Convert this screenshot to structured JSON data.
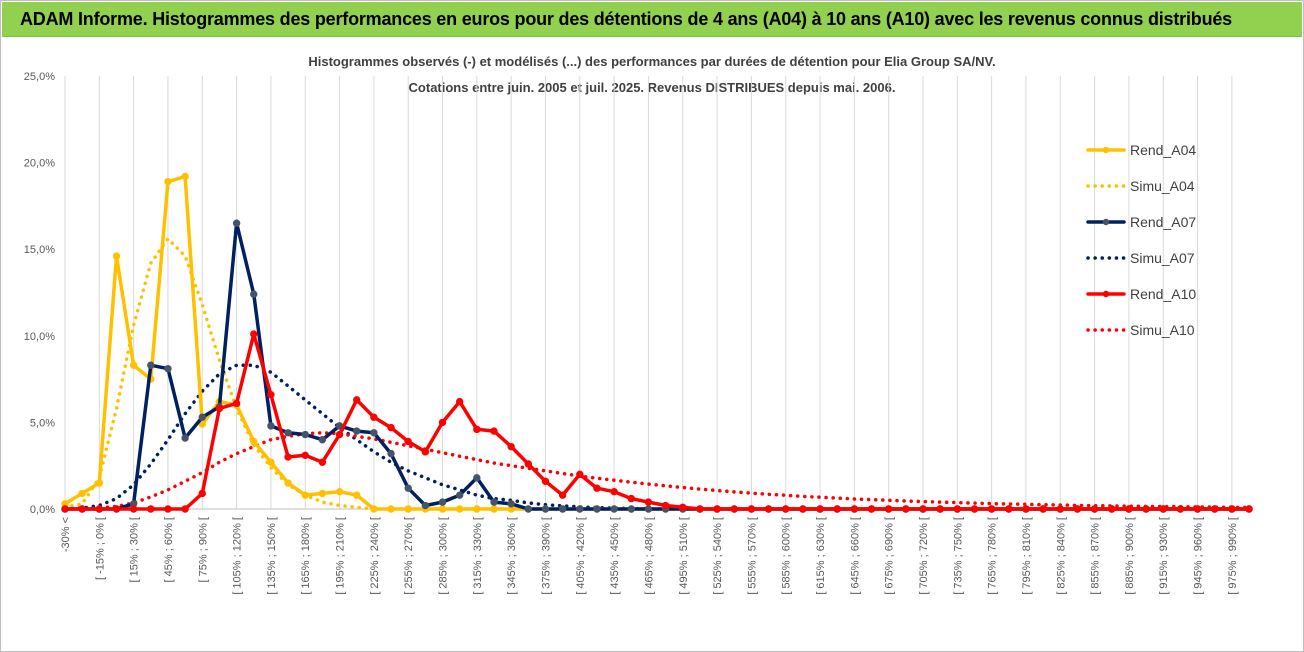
{
  "banner": {
    "title": "ADAM Informe. Histogrammes des performances en euros pour des détentions de 4 ans (A04) à 10 ans (A10) avec les revenus connus distribués"
  },
  "chart_data": {
    "type": "line",
    "title": "Histogrammes observés (-) et modélisés (...) des performances par durées de détention pour Elia Group SA/NV.",
    "subtitle": "Cotations entre juin. 2005 et juil. 2025. Revenus DISTRIBUES depuis mai. 2006.",
    "xlabel": "",
    "ylabel": "",
    "ylim": [
      0,
      25
    ],
    "yticks": [
      "0,0%",
      "5,0%",
      "10,0%",
      "15,0%",
      "20,0%",
      "25,0%"
    ],
    "grid": "vertical",
    "legend": "right",
    "categories": [
      "-30% <",
      "[ -30% ; -15% [",
      "[ -15% ; 0% [",
      "[ 0% ; 15% [",
      "[ 15% ; 30% [",
      "[ 30% ; 45% [",
      "[ 45% ; 60% [",
      "[ 60% ; 75% [",
      "[ 75% ; 90% [",
      "[ 90% ; 105% [",
      "[ 105% ; 120% [",
      "[ 120% ; 135% [",
      "[ 135% ; 150% [",
      "[ 150% ; 165% [",
      "[ 165% ; 180% [",
      "[ 180% ; 195% [",
      "[ 195% ; 210% [",
      "[ 210% ; 225% [",
      "[ 225% ; 240% [",
      "[ 240% ; 255% [",
      "[ 255% ; 270% [",
      "[ 270% ; 285% [",
      "[ 285% ; 300% [",
      "[ 300% ; 315% [",
      "[ 315% ; 330% [",
      "[ 330% ; 345% [",
      "[ 345% ; 360% [",
      "[ 360% ; 375% [",
      "[ 375% ; 390% [",
      "[ 390% ; 405% [",
      "[ 405% ; 420% [",
      "[ 420% ; 435% [",
      "[ 435% ; 450% [",
      "[ 450% ; 465% [",
      "[ 465% ; 480% [",
      "[ 480% ; 495% [",
      "[ 495% ; 510% [",
      "[ 510% ; 525% [",
      "[ 525% ; 540% [",
      "[ 540% ; 555% [",
      "[ 555% ; 570% [",
      "[ 570% ; 585% [",
      "[ 585% ; 600% [",
      "[ 600% ; 615% [",
      "[ 615% ; 630% [",
      "[ 630% ; 645% [",
      "[ 645% ; 660% [",
      "[ 660% ; 675% [",
      "[ 675% ; 690% [",
      "[ 690% ; 705% [",
      "[ 705% ; 720% [",
      "[ 720% ; 735% [",
      "[ 735% ; 750% [",
      "[ 750% ; 765% [",
      "[ 765% ; 780% [",
      "[ 780% ; 795% [",
      "[ 795% ; 810% [",
      "[ 810% ; 825% [",
      "[ 825% ; 840% [",
      "[ 840% ; 855% [",
      "[ 855% ; 870% [",
      "[ 870% ; 885% [",
      "[ 885% ; 900% [",
      "[ 900% ; 915% [",
      "[ 915% ; 930% [",
      "[ 930% ; 945% [",
      "[ 945% ; 960% [",
      "[ 960% ; 975% [",
      "[ 975% ; 990% [",
      "[ 990% ; 1005% ["
    ],
    "visible_tick_labels": [
      "-30% <",
      "[ -15% ; 0% [",
      "[ 15% ; 30% [",
      "[ 45% ; 60% [",
      "[ 75% ; 90% [",
      "[ 105% ; 120% [",
      "[ 135% ; 150% [",
      "[ 165% ; 180% [",
      "[ 195% ; 210% [",
      "[ 225% ; 240% [",
      "[ 255% ; 270% [",
      "[ 285% ; 300% [",
      "[ 315% ; 330% [",
      "[ 345% ; 360% [",
      "[ 375% ; 390% [",
      "[ 405% ; 420% [",
      "[ 435% ; 450% [",
      "[ 465% ; 480% [",
      "[ 495% ; 510% [",
      "[ 525% ; 540% [",
      "[ 555% ; 570% [",
      "[ 585% ; 600% [",
      "[ 615% ; 630% [",
      "[ 645% ; 660% [",
      "[ 675% ; 690% [",
      "[ 705% ; 720% [",
      "[ 735% ; 750% [",
      "[ 765% ; 780% [",
      "[ 795% ; 810% [",
      "[ 825% ; 840% [",
      "[ 855% ; 870% [",
      "[ 885% ; 900% [",
      "[ 915% ; 930% [",
      "[ 945% ; 960% [",
      "[ 975% ; 990% ["
    ],
    "series": [
      {
        "name": "Rend_A04",
        "color": "#ffc000",
        "style": "solid",
        "markers": true,
        "values": [
          0.3,
          0.9,
          1.5,
          14.6,
          8.3,
          7.5,
          18.9,
          19.2,
          4.9,
          6.2,
          6.0,
          3.9,
          2.7,
          1.5,
          0.8,
          0.9,
          1.0,
          0.8,
          0.0,
          0.0,
          0.0,
          0.0,
          0.0,
          0.0,
          0.0,
          0.0,
          0.0,
          0.0,
          0.0,
          0.0,
          0.0,
          0.0,
          0.0,
          0.0,
          0.0,
          0.0,
          0.0,
          0.0,
          0.0,
          0.0,
          0.0,
          0.0,
          0.0,
          0.0,
          0.0,
          0.0,
          0.0,
          0.0,
          0.0,
          0.0,
          0.0,
          0.0,
          0.0,
          0.0,
          0.0,
          0.0,
          0.0,
          0.0,
          0.0,
          0.0,
          0.0,
          0.0,
          0.0,
          0.0,
          0.0,
          0.0,
          0.0,
          0.0,
          0.0,
          0.0
        ]
      },
      {
        "name": "Simu_A04",
        "color": "#ffc000",
        "style": "dotted",
        "markers": false,
        "values": [
          0.1,
          0.3,
          1.8,
          5.8,
          10.6,
          14.2,
          15.6,
          14.6,
          11.8,
          8.6,
          5.8,
          3.7,
          2.4,
          1.4,
          0.8,
          0.4,
          0.2,
          0.1,
          0.0,
          0.0,
          0.0,
          0.0,
          0.0,
          0.0,
          0.0,
          0.0,
          0.0,
          0.0,
          0.0,
          0.0,
          0.0,
          0.0,
          0.0,
          0.0,
          0.0,
          0.0,
          0.0,
          0.0,
          0.0,
          0.0,
          0.0,
          0.0,
          0.0,
          0.0,
          0.0,
          0.0,
          0.0,
          0.0,
          0.0,
          0.0,
          0.0,
          0.0,
          0.0,
          0.0,
          0.0,
          0.0,
          0.0,
          0.0,
          0.0,
          0.0,
          0.0,
          0.0,
          0.0,
          0.0,
          0.0,
          0.0,
          0.0,
          0.0,
          0.0,
          0.0
        ]
      },
      {
        "name": "Rend_A07",
        "color": "#002060",
        "style": "solid",
        "markers": true,
        "values": [
          0.0,
          0.0,
          0.0,
          0.0,
          0.3,
          8.3,
          8.1,
          4.1,
          5.3,
          5.9,
          16.5,
          12.4,
          4.8,
          4.4,
          4.3,
          4.0,
          4.8,
          4.5,
          4.4,
          3.2,
          1.2,
          0.2,
          0.4,
          0.8,
          1.8,
          0.4,
          0.3,
          0.0,
          0.0,
          0.0,
          0.0,
          0.0,
          0.0,
          0.0,
          0.0,
          0.0,
          0.0,
          0.0,
          0.0,
          0.0,
          0.0,
          0.0,
          0.0,
          0.0,
          0.0,
          0.0,
          0.0,
          0.0,
          0.0,
          0.0,
          0.0,
          0.0,
          0.0,
          0.0,
          0.0,
          0.0,
          0.0,
          0.0,
          0.0,
          0.0,
          0.0,
          0.0,
          0.0,
          0.0,
          0.0,
          0.0,
          0.0,
          0.0,
          0.0,
          0.0
        ]
      },
      {
        "name": "Simu_A07",
        "color": "#002060",
        "style": "dotted",
        "markers": false,
        "values": [
          0.0,
          0.05,
          0.2,
          0.6,
          1.4,
          2.6,
          4.0,
          5.5,
          6.8,
          7.8,
          8.3,
          8.3,
          7.9,
          7.1,
          6.3,
          5.5,
          4.7,
          4.0,
          3.3,
          2.7,
          2.2,
          1.8,
          1.4,
          1.1,
          0.8,
          0.6,
          0.5,
          0.35,
          0.25,
          0.18,
          0.12,
          0.08,
          0.05,
          0.03,
          0.02,
          0.0,
          0.0,
          0.0,
          0.0,
          0.0,
          0.0,
          0.0,
          0.0,
          0.0,
          0.0,
          0.0,
          0.0,
          0.0,
          0.0,
          0.0,
          0.0,
          0.0,
          0.0,
          0.0,
          0.0,
          0.0,
          0.0,
          0.0,
          0.0,
          0.0,
          0.0,
          0.0,
          0.0,
          0.0,
          0.0,
          0.0,
          0.0,
          0.0,
          0.0,
          0.0
        ]
      },
      {
        "name": "Rend_A10",
        "color": "#ff0000",
        "style": "solid",
        "markers": true,
        "values": [
          0.0,
          0.0,
          0.0,
          0.0,
          0.0,
          0.0,
          0.0,
          0.0,
          0.9,
          5.8,
          6.1,
          10.1,
          6.6,
          3.0,
          3.1,
          2.7,
          4.3,
          6.3,
          5.3,
          4.7,
          3.9,
          3.3,
          5.0,
          6.2,
          4.6,
          4.5,
          3.6,
          2.6,
          1.6,
          0.8,
          2.0,
          1.2,
          1.0,
          0.6,
          0.4,
          0.2,
          0.1,
          0.0,
          0.0,
          0.0,
          0.0,
          0.0,
          0.0,
          0.0,
          0.0,
          0.0,
          0.0,
          0.0,
          0.0,
          0.0,
          0.0,
          0.0,
          0.0,
          0.0,
          0.0,
          0.0,
          0.0,
          0.0,
          0.0,
          0.0,
          0.0,
          0.0,
          0.0,
          0.0,
          0.0,
          0.0,
          0.0,
          0.0,
          0.0,
          0.0
        ]
      },
      {
        "name": "Simu_A10",
        "color": "#ff0000",
        "style": "dotted",
        "markers": false,
        "values": [
          0.0,
          0.0,
          0.05,
          0.15,
          0.35,
          0.7,
          1.1,
          1.6,
          2.1,
          2.7,
          3.2,
          3.6,
          4.0,
          4.2,
          4.35,
          4.4,
          4.35,
          4.2,
          4.05,
          3.85,
          3.65,
          3.45,
          3.25,
          3.05,
          2.85,
          2.65,
          2.5,
          2.35,
          2.2,
          2.05,
          1.9,
          1.78,
          1.66,
          1.55,
          1.44,
          1.34,
          1.24,
          1.15,
          1.07,
          0.99,
          0.92,
          0.85,
          0.79,
          0.73,
          0.68,
          0.63,
          0.58,
          0.54,
          0.5,
          0.46,
          0.43,
          0.4,
          0.37,
          0.34,
          0.31,
          0.29,
          0.27,
          0.25,
          0.23,
          0.21,
          0.19,
          0.18,
          0.16,
          0.15,
          0.14,
          0.13,
          0.12,
          0.11,
          0.1,
          0.09
        ]
      }
    ]
  }
}
